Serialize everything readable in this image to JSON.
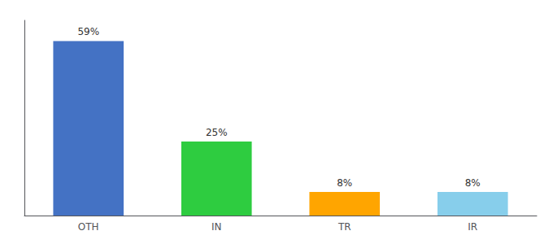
{
  "chart_data": {
    "type": "bar",
    "categories": [
      "OTH",
      "IN",
      "TR",
      "IR"
    ],
    "values": [
      59,
      25,
      8,
      8
    ],
    "value_labels": [
      "59%",
      "25%",
      "8%",
      "8%"
    ],
    "colors": [
      "#4472C4",
      "#2ECC40",
      "#FFA500",
      "#87CEEB"
    ],
    "ylim": [
      0,
      66
    ],
    "data_labels": true,
    "tick_labels": "x",
    "grid": false
  }
}
